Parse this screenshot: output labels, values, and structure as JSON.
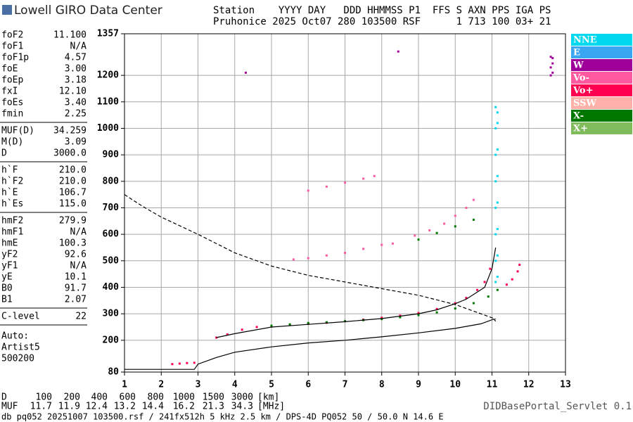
{
  "header": {
    "logo": "Lowell GIRO Data Center",
    "line1": "Station    YYYY DAY   DDD HHMMSS P1  FFS S AXN PPS IGA PS",
    "line2": "Pruhonice 2025 Oct07 280 103500 RSF      1 713 100 03+ 21"
  },
  "panel": {
    "groups": [
      [
        [
          "foF2",
          "11.100"
        ],
        [
          "foF1",
          "N/A"
        ],
        [
          "foF1p",
          "4.57"
        ],
        [
          "foE",
          "3.00"
        ],
        [
          "foEp",
          "3.18"
        ],
        [
          "fxI",
          "12.10"
        ],
        [
          "foEs",
          "3.40"
        ],
        [
          "fmin",
          "2.25"
        ]
      ],
      [
        [
          "MUF(D)",
          "34.259"
        ],
        [
          "M(D)",
          "3.09"
        ],
        [
          "D",
          "3000.0"
        ]
      ],
      [
        [
          "h`F",
          "210.0"
        ],
        [
          "h`F2",
          "210.0"
        ],
        [
          "h`E",
          "106.7"
        ],
        [
          "h`Es",
          "115.0"
        ]
      ],
      [
        [
          "hmF2",
          "279.9"
        ],
        [
          "hmF1",
          "N/A"
        ],
        [
          "hmE",
          "100.3"
        ],
        [
          "yF2",
          "92.6"
        ],
        [
          "yF1",
          "N/A"
        ],
        [
          "yE",
          "10.1"
        ],
        [
          "B0",
          "91.7"
        ],
        [
          "B1",
          "2.07"
        ]
      ],
      [
        [
          "C-level",
          "22"
        ]
      ]
    ],
    "notes": [
      "Auto:",
      "Artist5",
      "500200"
    ]
  },
  "muf_table": {
    "rows": [
      [
        "D",
        "100",
        "200",
        "400",
        "600",
        "800",
        "1000",
        "1500",
        "3000",
        "[km]"
      ],
      [
        "MUF",
        "11.7",
        "11.9",
        "12.4",
        "13.2",
        "14.4",
        "16.2",
        "21.3",
        "34.3",
        "[MHz]"
      ]
    ]
  },
  "footer": {
    "left": "db pq052 20251007 103500.rsf / 241fx512h 5 kHz 2.5 km / DPS-4D PQ052 50 / 50.0 N 14.6 E",
    "right": "DIDBasePortal_Servlet 0.1"
  },
  "chart_data": {
    "type": "scatter",
    "xlim": [
      1,
      13
    ],
    "xticks": [
      1,
      2,
      3,
      4,
      5,
      6,
      7,
      8,
      9,
      10,
      11,
      12,
      13
    ],
    "ylim": [
      80,
      1357
    ],
    "yticks": [
      80,
      200,
      300,
      400,
      500,
      600,
      700,
      800,
      900,
      1000,
      1100,
      1200,
      1357
    ],
    "grid": true,
    "legend": [
      {
        "name": "NNE",
        "color": "#00d8f0"
      },
      {
        "name": "E",
        "color": "#3aa6f2"
      },
      {
        "name": "W",
        "color": "#a0009a"
      },
      {
        "name": "Vo-",
        "color": "#ff5aa0"
      },
      {
        "name": "Vo+",
        "color": "#ff0050"
      },
      {
        "name": "SSW",
        "color": "#ffb0a8"
      },
      {
        "name": "X-",
        "color": "#007800"
      },
      {
        "name": "X+",
        "color": "#80bc5c"
      }
    ],
    "series": [
      {
        "mode": "points",
        "color": "#ff0050",
        "x": [
          2.3,
          2.5,
          2.7,
          2.9,
          3.5,
          3.8,
          4.2,
          4.6,
          5.0,
          5.5,
          6.0,
          6.5,
          7.0,
          7.5,
          8.0,
          8.5,
          9.0,
          9.5,
          10.0,
          10.3,
          10.6,
          10.8,
          10.95,
          11.4,
          11.55,
          11.7,
          11.75
        ],
        "y": [
          110,
          112,
          114,
          115,
          210,
          222,
          240,
          250,
          252,
          258,
          262,
          266,
          272,
          278,
          285,
          293,
          303,
          318,
          340,
          360,
          390,
          420,
          470,
          410,
          430,
          460,
          485
        ]
      },
      {
        "mode": "points",
        "color": "#ff5aa0",
        "x": [
          5.6,
          6.0,
          6.5,
          7.0,
          7.5,
          8.0,
          8.3,
          8.9,
          9.3,
          9.7,
          10.0,
          10.3,
          10.5,
          6.0,
          6.5,
          7.0,
          7.5,
          7.8
        ],
        "y": [
          505,
          510,
          520,
          530,
          545,
          560,
          565,
          595,
          615,
          640,
          670,
          700,
          730,
          765,
          780,
          795,
          810,
          820
        ]
      },
      {
        "mode": "points",
        "color": "#007800",
        "x": [
          5.0,
          5.5,
          6.0,
          6.5,
          7.0,
          7.5,
          8.0,
          8.5,
          9.0,
          9.5,
          10.0,
          10.5,
          10.9,
          11.15,
          9.0,
          9.5,
          10.0,
          10.5
        ],
        "y": [
          255,
          260,
          265,
          268,
          272,
          276,
          280,
          287,
          295,
          305,
          320,
          340,
          365,
          390,
          580,
          605,
          630,
          655
        ]
      },
      {
        "mode": "points",
        "color": "#00d8f0",
        "x": [
          11.1,
          11.1,
          11.1,
          11.1,
          11.1,
          11.1,
          11.1,
          11.1,
          11.15,
          11.15,
          11.15,
          11.15,
          11.15,
          11.15,
          11.15,
          11.15
        ],
        "y": [
          420,
          500,
          600,
          700,
          800,
          900,
          1000,
          1080,
          440,
          520,
          620,
          720,
          820,
          920,
          1020,
          1060
        ]
      },
      {
        "mode": "points",
        "color": "#a0009a",
        "x": [
          12.6,
          12.6,
          12.6,
          12.65,
          12.65,
          12.65,
          4.3,
          8.45
        ],
        "y": [
          1200,
          1230,
          1270,
          1210,
          1245,
          1265,
          1210,
          1290
        ]
      },
      {
        "mode": "line",
        "color": "#000000",
        "x": [
          1.0,
          2.9,
          3.0,
          3.5,
          4.0,
          5.0,
          6.0,
          7.0,
          8.0,
          9.0,
          10.0,
          10.7,
          11.05,
          11.1
        ],
        "y": [
          90,
          90,
          110,
          135,
          155,
          175,
          190,
          200,
          213,
          228,
          245,
          262,
          280,
          272
        ]
      },
      {
        "mode": "line",
        "color": "#000000",
        "x": [
          3.5,
          4.0,
          5.0,
          6.0,
          7.0,
          8.0,
          9.0,
          9.5,
          10.0,
          10.3,
          10.8,
          11.0,
          11.1
        ],
        "y": [
          210,
          225,
          250,
          260,
          270,
          282,
          300,
          315,
          338,
          355,
          400,
          470,
          550
        ]
      },
      {
        "mode": "line",
        "dash": true,
        "color": "#000000",
        "x": [
          1.0,
          1.5,
          2.0,
          3.0,
          4.0,
          5.0,
          6.0,
          7.0,
          8.0,
          9.0,
          10.0,
          10.5,
          10.9,
          11.1
        ],
        "y": [
          750,
          705,
          665,
          600,
          530,
          480,
          445,
          420,
          395,
          370,
          335,
          310,
          290,
          280
        ]
      }
    ]
  }
}
